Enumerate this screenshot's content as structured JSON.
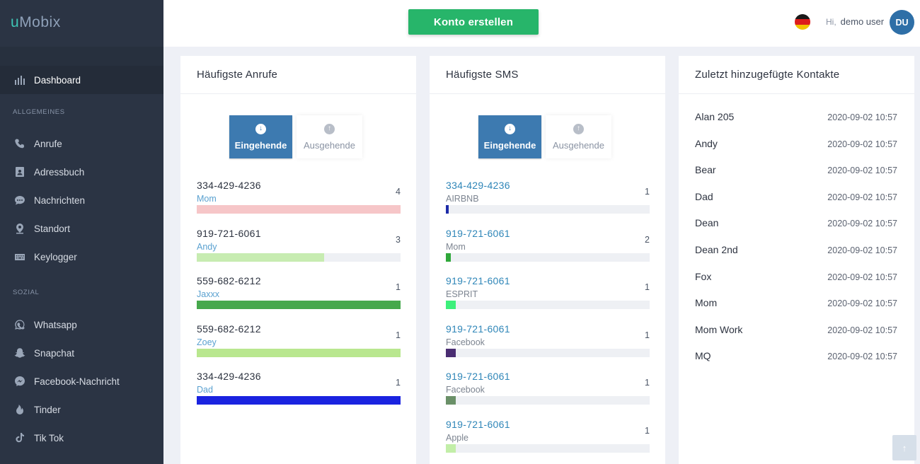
{
  "app": {
    "brand_u": "u",
    "brand_rest": "Mobix"
  },
  "sidebar": {
    "dashboard": "Dashboard",
    "section_general": "ALLGEMEINES",
    "general_items": [
      {
        "label": "Anrufe",
        "icon": "phone-icon"
      },
      {
        "label": "Adressbuch",
        "icon": "address-book-icon"
      },
      {
        "label": "Nachrichten",
        "icon": "chat-bubble-icon"
      },
      {
        "label": "Standort",
        "icon": "location-pin-icon"
      },
      {
        "label": "Keylogger",
        "icon": "keyboard-icon"
      }
    ],
    "section_social": "SOZIAL",
    "social_items": [
      {
        "label": "Whatsapp",
        "icon": "whatsapp-icon"
      },
      {
        "label": "Snapchat",
        "icon": "snapchat-icon"
      },
      {
        "label": "Facebook-Nachricht",
        "icon": "messenger-icon"
      },
      {
        "label": "Tinder",
        "icon": "flame-icon"
      },
      {
        "label": "Tik Tok",
        "icon": "tiktok-icon"
      }
    ]
  },
  "topbar": {
    "cta_label": "Konto erstellen",
    "greeting": "Hi,",
    "username": "demo user",
    "avatar_initials": "DU",
    "flag": "germany-flag"
  },
  "calls": {
    "title": "Häufigste Anrufe",
    "incoming": "Eingehende",
    "outgoing": "Ausgehende",
    "items": [
      {
        "number": "334-429-4236",
        "name": "Mom",
        "count": "4",
        "fraction": 1.0,
        "color": "#f6c6c8"
      },
      {
        "number": "919-721-6061",
        "name": "Andy",
        "count": "3",
        "fraction": 0.625,
        "color": "#c7ecb1"
      },
      {
        "number": "559-682-6212",
        "name": "Jaxxx",
        "count": "1",
        "fraction": 1.0,
        "color": "#46a84c"
      },
      {
        "number": "559-682-6212",
        "name": "Zoey",
        "count": "1",
        "fraction": 1.0,
        "color": "#b9e78f"
      },
      {
        "number": "334-429-4236",
        "name": "Dad",
        "count": "1",
        "fraction": 1.0,
        "color": "#1a23e0"
      }
    ]
  },
  "sms": {
    "title": "Häufigste SMS",
    "incoming": "Eingehende",
    "outgoing": "Ausgehende",
    "items": [
      {
        "number": "334-429-4236",
        "name": "AIRBNB",
        "count": "1",
        "fraction": 0.014,
        "color": "#1d2ba8"
      },
      {
        "number": "919-721-6061",
        "name": "Mom",
        "count": "2",
        "fraction": 0.024,
        "color": "#2fa83a"
      },
      {
        "number": "919-721-6061",
        "name": "ESPRIT",
        "count": "1",
        "fraction": 0.048,
        "color": "#3df07b"
      },
      {
        "number": "919-721-6061",
        "name": "Facebook",
        "count": "1",
        "fraction": 0.048,
        "color": "#4a2d72"
      },
      {
        "number": "919-721-6061",
        "name": "Facebook",
        "count": "1",
        "fraction": 0.048,
        "color": "#6a9068"
      },
      {
        "number": "919-721-6061",
        "name": "Apple",
        "count": "1",
        "fraction": 0.048,
        "color": "#c2eea8"
      }
    ]
  },
  "contacts": {
    "title": "Zuletzt hinzugefügte Kontakte",
    "items": [
      {
        "name": "Alan 205",
        "date": "2020-09-02 10:57"
      },
      {
        "name": "Andy",
        "date": "2020-09-02 10:57"
      },
      {
        "name": "Bear",
        "date": "2020-09-02 10:57"
      },
      {
        "name": "Dad",
        "date": "2020-09-02 10:57"
      },
      {
        "name": "Dean",
        "date": "2020-09-02 10:57"
      },
      {
        "name": "Dean 2nd",
        "date": "2020-09-02 10:57"
      },
      {
        "name": "Fox",
        "date": "2020-09-02 10:57"
      },
      {
        "name": "Mom",
        "date": "2020-09-02 10:57"
      },
      {
        "name": "Mom Work",
        "date": "2020-09-02 10:57"
      },
      {
        "name": "MQ",
        "date": "2020-09-02 10:57"
      }
    ]
  },
  "scroll_top": {
    "icon": "arrow-up-icon",
    "glyph": "↑"
  }
}
